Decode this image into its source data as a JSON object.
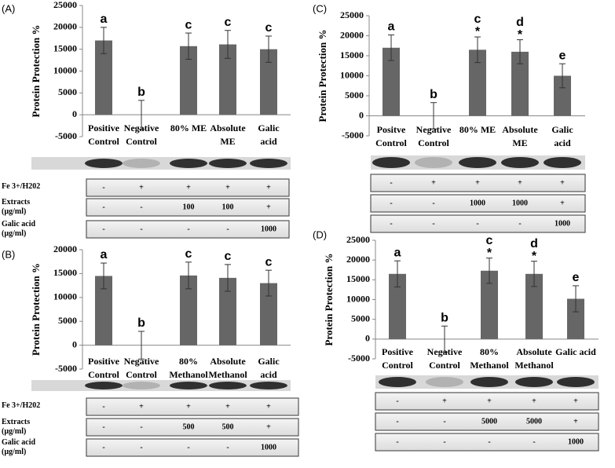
{
  "chart_data": [
    {
      "type": "bar",
      "panel_label": "(A)",
      "ylabel": "Protein Protection %",
      "color": "#666666",
      "categories": [
        "Positive Control",
        "Negative Control",
        "80% ME",
        "Absolute ME",
        "Galic acid"
      ],
      "values": [
        17000,
        0,
        15700,
        16100,
        15000
      ],
      "errors": [
        3000,
        3300,
        3000,
        3200,
        3000
      ],
      "letters": [
        "a",
        "b",
        "c",
        "c",
        "c"
      ],
      "ylim": [
        -5000,
        25000
      ],
      "yticks": [
        -5000,
        0,
        5000,
        10000,
        15000,
        20000,
        25000
      ]
    },
    {
      "type": "bar",
      "panel_label": "(B)",
      "ylabel": "Protein Protection %",
      "color": "#666666",
      "categories": [
        "Positive Control",
        "Negative Control",
        "80% Methanol",
        "Absolute Methanol",
        "Galic acid"
      ],
      "values": [
        14500,
        0,
        14600,
        14100,
        13000
      ],
      "errors": [
        2700,
        2900,
        2800,
        2800,
        2700
      ],
      "letters": [
        "a",
        "b",
        "c",
        "c",
        "c"
      ],
      "ylim": [
        -5000,
        20000
      ],
      "yticks": [
        -5000,
        0,
        5000,
        10000,
        15000,
        20000
      ]
    },
    {
      "type": "bar",
      "panel_label": "(C)",
      "ylabel": "Protein Protection %",
      "color": "#666666",
      "categories": [
        "Positve Control",
        "Negative Control",
        "80% ME",
        "Absolute ME",
        "Galic acid"
      ],
      "values": [
        17000,
        0,
        16500,
        16000,
        10000
      ],
      "errors": [
        3200,
        3300,
        3200,
        3000,
        3000
      ],
      "letters": [
        "a",
        "b",
        "c",
        "d",
        "e"
      ],
      "stars": [
        null,
        null,
        "*",
        "*",
        null
      ],
      "ylim": [
        -5000,
        25000
      ],
      "yticks": [
        -5000,
        0,
        5000,
        10000,
        15000,
        20000,
        25000
      ]
    },
    {
      "type": "bar",
      "panel_label": "(D)",
      "ylabel": "Protein Protection %",
      "color": "#666666",
      "categories": [
        "Positive Control",
        "Negative Control",
        "80% Methanol",
        "Absolute Methanol",
        "Galic acid"
      ],
      "values": [
        16500,
        0,
        17300,
        16500,
        10200
      ],
      "errors": [
        3300,
        3300,
        3200,
        3200,
        3300
      ],
      "letters": [
        "a",
        "b",
        "c",
        "d",
        "e"
      ],
      "stars": [
        null,
        null,
        "*",
        "*",
        null
      ],
      "ylim": [
        -5000,
        25000
      ],
      "yticks": [
        -5000,
        0,
        5000,
        10000,
        15000,
        20000,
        25000
      ]
    }
  ],
  "tables": [
    {
      "rows": [
        {
          "label": "Fe 3+/H202",
          "cells": [
            "-",
            "+",
            "+",
            "+",
            "+"
          ]
        },
        {
          "label": "Extracts (µg/ml)",
          "cells": [
            "-",
            "-",
            "100",
            "100",
            "+"
          ]
        },
        {
          "label": "Galic acid (µg/ml)",
          "cells": [
            "-",
            "-",
            "-",
            "-",
            "1000"
          ]
        }
      ]
    },
    {
      "rows": [
        {
          "label": "Fe 3+/H202",
          "cells": [
            "-",
            "+",
            "+",
            "+",
            "+"
          ]
        },
        {
          "label": "Extracts (µg/ml)",
          "cells": [
            "-",
            "-",
            "500",
            "500",
            "+"
          ]
        },
        {
          "label": "Galic acid (µg/ml)",
          "cells": [
            "-",
            "-",
            "-",
            "-",
            "1000"
          ]
        }
      ]
    },
    {
      "rows": [
        {
          "cells": [
            "-",
            "+",
            "+",
            "+",
            "+"
          ]
        },
        {
          "cells": [
            "-",
            "-",
            "1000",
            "1000",
            "+"
          ]
        },
        {
          "cells": [
            "-",
            "-",
            "-",
            "-",
            "1000"
          ]
        }
      ]
    },
    {
      "rows": [
        {
          "cells": [
            "-",
            "+",
            "+",
            "+",
            "+"
          ]
        },
        {
          "cells": [
            "-",
            "-",
            "5000",
            "5000",
            "+"
          ]
        },
        {
          "cells": [
            "-",
            "-",
            "-",
            "-",
            "1000"
          ]
        }
      ]
    }
  ]
}
